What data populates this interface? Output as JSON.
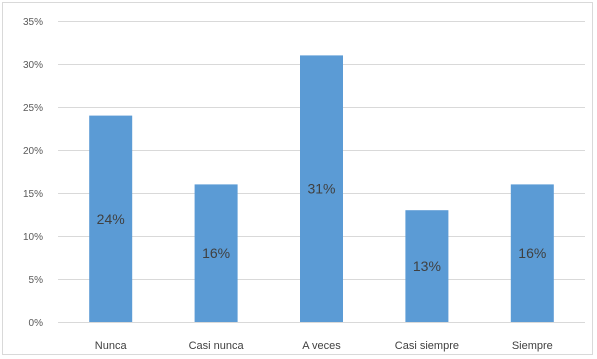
{
  "chart_data": {
    "type": "bar",
    "categories": [
      "Nunca",
      "Casi nunca",
      "A veces",
      "Casi siempre",
      "Siempre"
    ],
    "values": [
      24,
      16,
      31,
      13,
      16
    ],
    "data_labels": [
      "24%",
      "16%",
      "31%",
      "13%",
      "16%"
    ],
    "ylim": [
      0,
      35
    ],
    "yticks": [
      0,
      5,
      10,
      15,
      20,
      25,
      30,
      35
    ],
    "ytick_labels": [
      "0%",
      "5%",
      "10%",
      "15%",
      "20%",
      "25%",
      "30%",
      "35%"
    ],
    "grid": true,
    "legend": "none",
    "bar_color": "#5b9bd5"
  }
}
